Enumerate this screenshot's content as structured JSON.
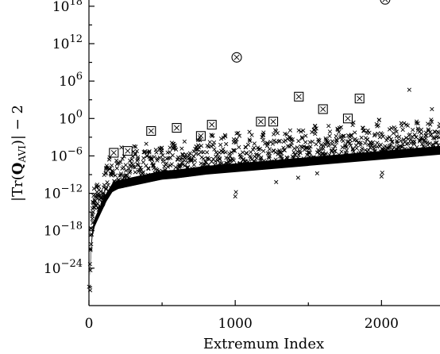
{
  "chart_data": {
    "type": "scatter",
    "title": "",
    "xlabel": "Extremum Index",
    "ylabel": "|Tr(Q_AVI)| − 2",
    "ylabel_parts": {
      "pre": "|Tr(",
      "bold": "Q",
      "sub": "AVI",
      "post": ")| − 2"
    },
    "xlim": [
      0,
      2400
    ],
    "ylog_exponent_range": [
      -30,
      19
    ],
    "y_scale": "log10",
    "grid": false,
    "legend": "none",
    "x_ticks": [
      {
        "value": 0,
        "label": "0"
      },
      {
        "value": 1000,
        "label": "1000"
      },
      {
        "value": 2000,
        "label": "2000"
      }
    ],
    "y_ticks": [
      {
        "exp": 18,
        "base": "10",
        "sup": "18"
      },
      {
        "exp": 12,
        "base": "10",
        "sup": "12"
      },
      {
        "exp": 6,
        "base": "10",
        "sup": "6"
      },
      {
        "exp": 0,
        "base": "10",
        "sup": "0"
      },
      {
        "exp": -6,
        "base": "10",
        "sup": "−6"
      },
      {
        "exp": -12,
        "base": "10",
        "sup": "−12"
      },
      {
        "exp": -18,
        "base": "10",
        "sup": "−18"
      },
      {
        "exp": -24,
        "base": "10",
        "sup": "−24"
      }
    ],
    "series": [
      {
        "marker": "x",
        "description_points_log10": [
          [
            3,
            -28.5
          ],
          [
            5,
            -27
          ],
          [
            8,
            -24.5
          ],
          [
            12,
            -22
          ],
          [
            18,
            -19.5
          ],
          [
            25,
            -18
          ],
          [
            40,
            -16.5
          ],
          [
            60,
            -15.5
          ],
          [
            90,
            -14
          ],
          [
            120,
            -12.5
          ],
          [
            160,
            -11
          ],
          [
            200,
            -10.5
          ],
          [
            300,
            -10
          ],
          [
            400,
            -9.5
          ],
          [
            500,
            -9
          ],
          [
            600,
            -8.8
          ],
          [
            700,
            -8.5
          ],
          [
            800,
            -8.2
          ],
          [
            900,
            -8
          ],
          [
            1000,
            -7.8
          ],
          [
            1100,
            -7.6
          ],
          [
            1200,
            -7.4
          ],
          [
            1300,
            -7.2
          ],
          [
            1400,
            -7
          ],
          [
            1500,
            -6.8
          ],
          [
            1600,
            -6.6
          ],
          [
            1700,
            -6.4
          ],
          [
            1800,
            -6.2
          ],
          [
            1900,
            -6
          ],
          [
            2000,
            -5.8
          ],
          [
            2100,
            -5.6
          ],
          [
            2200,
            -5.4
          ],
          [
            2300,
            -5.2
          ],
          [
            2400,
            -5
          ]
        ]
      },
      {
        "marker": "boxed-x",
        "points": [
          [
            170,
            -5.5
          ],
          [
            265,
            -5.2
          ],
          [
            425,
            -2.0
          ],
          [
            600,
            -1.5
          ],
          [
            765,
            -2.8
          ],
          [
            840,
            -1.0
          ],
          [
            1175,
            -0.5
          ],
          [
            1260,
            -0.5
          ],
          [
            1435,
            3.5
          ],
          [
            1600,
            1.5
          ],
          [
            1770,
            0.0
          ],
          [
            1850,
            3.2
          ]
        ]
      },
      {
        "marker": "circled-x",
        "points": [
          [
            1010,
            9.8
          ],
          [
            2025,
            19.1
          ]
        ]
      },
      {
        "marker": "x",
        "points": [
          [
            2190,
            4.6
          ],
          [
            2345,
            1.5
          ]
        ]
      }
    ]
  }
}
